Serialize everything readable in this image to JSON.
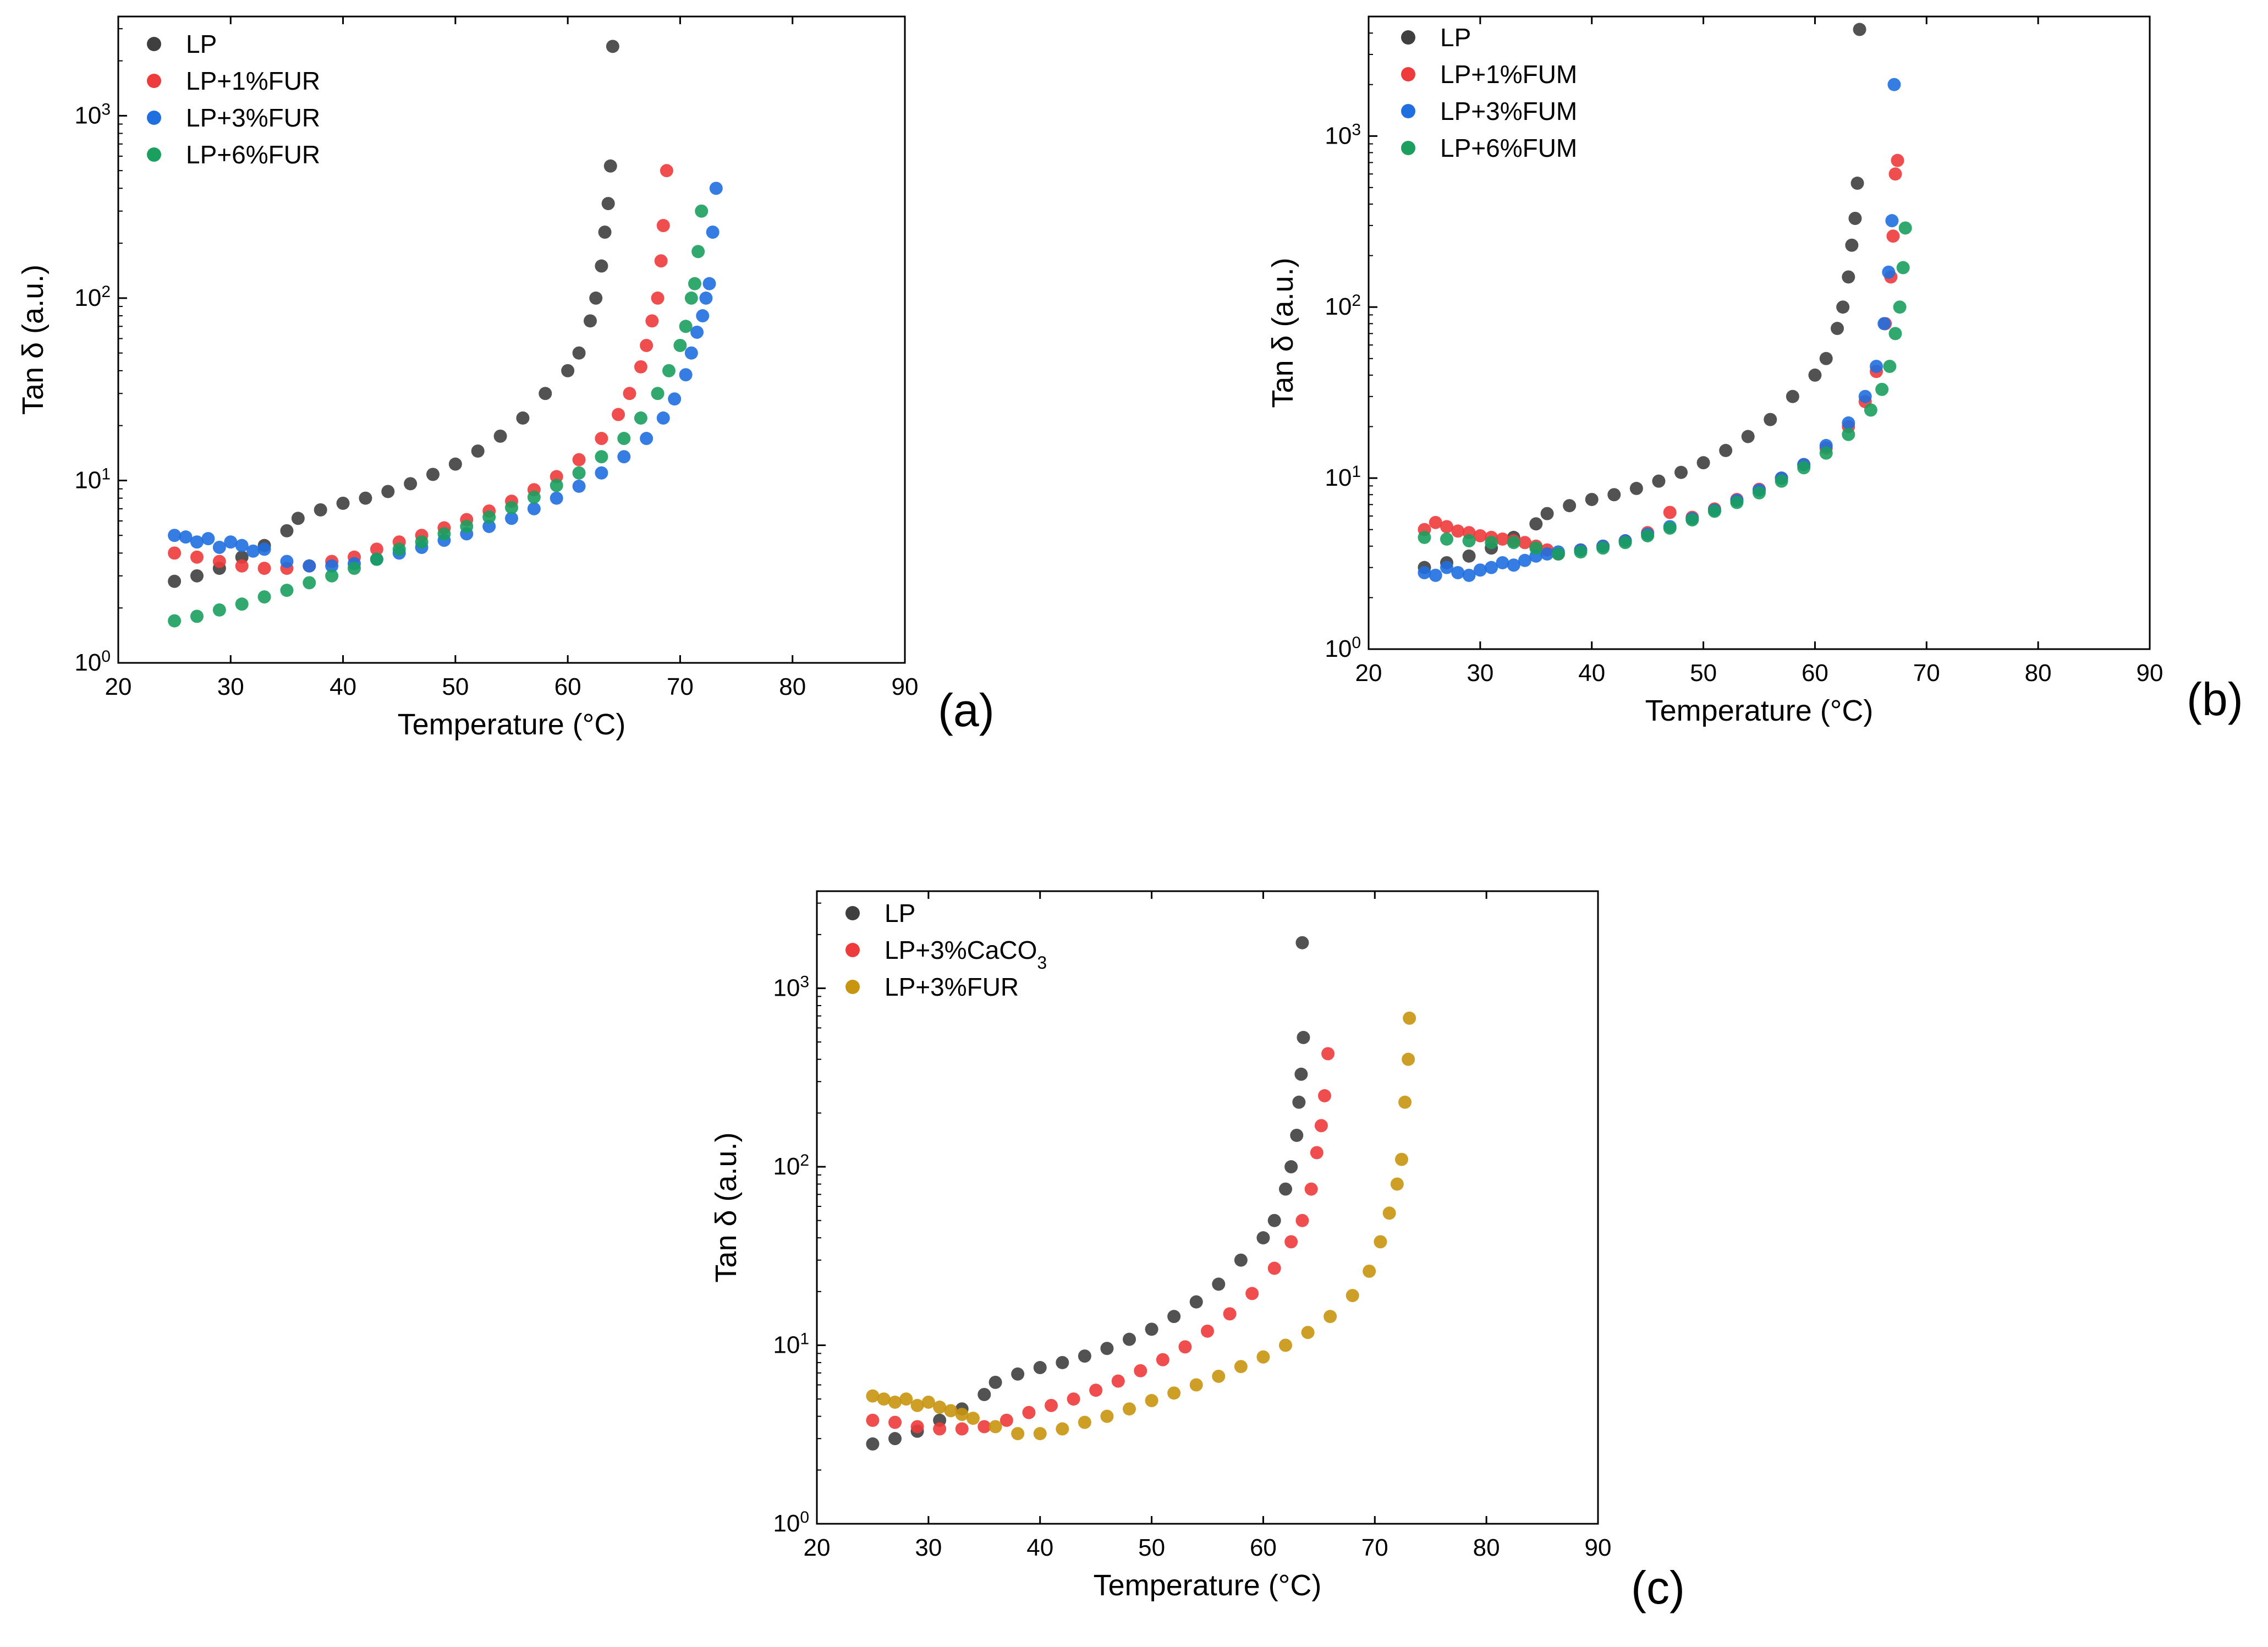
{
  "figure": {
    "panels": [
      "(a)",
      "(b)",
      "(c)"
    ]
  },
  "chart_data": [
    {
      "panel": "(a)",
      "type": "scatter",
      "xlabel": "Temperature (°C)",
      "ylabel": "Tan δ (a.u.)",
      "xlim": [
        20,
        90
      ],
      "xticks": [
        20,
        30,
        40,
        50,
        60,
        70,
        80,
        90
      ],
      "ylim": [
        1,
        3500
      ],
      "yscale": "log",
      "yticks": [
        {
          "base": "10",
          "exp": "0",
          "value": 1
        },
        {
          "base": "10",
          "exp": "1",
          "value": 10
        },
        {
          "base": "10",
          "exp": "2",
          "value": 100
        },
        {
          "base": "10",
          "exp": "3",
          "value": 1000
        }
      ],
      "grid": false,
      "legend_position": "top-left",
      "series": [
        {
          "name": "LP",
          "color": "#3f3f3f",
          "x": [
            25,
            27,
            29,
            31,
            33,
            35,
            36,
            38,
            40,
            42,
            44,
            46,
            48,
            50,
            52,
            54,
            56,
            58,
            60,
            61,
            62,
            62.5,
            63,
            63.3,
            63.6,
            63.8,
            64
          ],
          "y": [
            2.8,
            3.0,
            3.3,
            3.8,
            4.4,
            5.3,
            6.2,
            6.9,
            7.5,
            8.0,
            8.7,
            9.6,
            10.8,
            12.3,
            14.5,
            17.5,
            22,
            30,
            40,
            50,
            75,
            100,
            150,
            230,
            330,
            530,
            2400
          ]
        },
        {
          "name": "LP+1%FUR",
          "color": "#ee3b3b",
          "x": [
            25,
            27,
            29,
            31,
            33,
            35,
            37,
            39,
            41,
            43,
            45,
            47,
            49,
            51,
            53,
            55,
            57,
            59,
            61,
            63,
            64.5,
            65.5,
            66.5,
            67,
            67.5,
            68,
            68.3,
            68.5,
            68.8
          ],
          "y": [
            4.0,
            3.8,
            3.6,
            3.4,
            3.3,
            3.3,
            3.4,
            3.6,
            3.8,
            4.2,
            4.6,
            5.0,
            5.5,
            6.1,
            6.8,
            7.7,
            8.9,
            10.5,
            13,
            17,
            23,
            30,
            42,
            55,
            75,
            100,
            160,
            250,
            500
          ]
        },
        {
          "name": "LP+3%FUR",
          "color": "#1f6fe0",
          "x": [
            25,
            26,
            27,
            28,
            29,
            30,
            31,
            32,
            33,
            35,
            37,
            39,
            41,
            43,
            45,
            47,
            49,
            51,
            53,
            55,
            57,
            59,
            61,
            63,
            65,
            67,
            68.5,
            69.5,
            70.5,
            71,
            71.5,
            72,
            72.3,
            72.6,
            72.9,
            73.2
          ],
          "y": [
            5.0,
            4.9,
            4.6,
            4.8,
            4.3,
            4.6,
            4.4,
            4.1,
            4.2,
            3.6,
            3.4,
            3.4,
            3.5,
            3.7,
            4.0,
            4.3,
            4.7,
            5.1,
            5.6,
            6.2,
            7.0,
            8.0,
            9.3,
            11,
            13.5,
            17,
            22,
            28,
            38,
            50,
            65,
            80,
            100,
            120,
            230,
            400
          ]
        },
        {
          "name": "LP+6%FUR",
          "color": "#1a9f5e",
          "x": [
            25,
            27,
            29,
            31,
            33,
            35,
            37,
            39,
            41,
            43,
            45,
            47,
            49,
            51,
            53,
            55,
            57,
            59,
            61,
            63,
            65,
            66.5,
            68,
            69,
            70,
            70.5,
            71,
            71.3,
            71.6,
            71.9
          ],
          "y": [
            1.7,
            1.8,
            1.95,
            2.1,
            2.3,
            2.5,
            2.75,
            3.0,
            3.3,
            3.7,
            4.2,
            4.6,
            5.1,
            5.6,
            6.3,
            7.1,
            8.1,
            9.4,
            11,
            13.5,
            17,
            22,
            30,
            40,
            55,
            70,
            100,
            120,
            180,
            300
          ]
        }
      ]
    },
    {
      "panel": "(b)",
      "type": "scatter",
      "xlabel": "Temperature (°C)",
      "ylabel": "Tan δ (a.u.)",
      "xlim": [
        20,
        90
      ],
      "xticks": [
        20,
        30,
        40,
        50,
        60,
        70,
        80,
        90
      ],
      "ylim": [
        1,
        5000
      ],
      "yscale": "log",
      "yticks": [
        {
          "base": "10",
          "exp": "0",
          "value": 1
        },
        {
          "base": "10",
          "exp": "1",
          "value": 10
        },
        {
          "base": "10",
          "exp": "2",
          "value": 100
        },
        {
          "base": "10",
          "exp": "3",
          "value": 1000
        }
      ],
      "grid": false,
      "legend_position": "top-left",
      "series": [
        {
          "name": "LP",
          "color": "#3f3f3f",
          "x": [
            25,
            27,
            29,
            31,
            33,
            35,
            36,
            38,
            40,
            42,
            44,
            46,
            48,
            50,
            52,
            54,
            56,
            58,
            60,
            61,
            62,
            62.5,
            63,
            63.3,
            63.6,
            63.8,
            64
          ],
          "y": [
            3.0,
            3.2,
            3.5,
            3.9,
            4.5,
            5.4,
            6.2,
            6.9,
            7.5,
            8.0,
            8.7,
            9.6,
            10.8,
            12.3,
            14.5,
            17.5,
            22,
            30,
            40,
            50,
            75,
            100,
            150,
            230,
            330,
            530,
            4200
          ]
        },
        {
          "name": "LP+1%FUM",
          "color": "#ee3b3b",
          "x": [
            25,
            26,
            27,
            28,
            29,
            30,
            31,
            32,
            33,
            34,
            35,
            36,
            37,
            39,
            41,
            43,
            45,
            47,
            49,
            51,
            53,
            55,
            57,
            59,
            61,
            63,
            64.5,
            65.5,
            66.3,
            66.8,
            67,
            67.2,
            67.4
          ],
          "y": [
            5.0,
            5.5,
            5.2,
            4.9,
            4.8,
            4.6,
            4.5,
            4.4,
            4.3,
            4.2,
            4.0,
            3.8,
            3.6,
            3.8,
            4.0,
            4.3,
            4.8,
            6.3,
            5.9,
            6.6,
            7.5,
            8.6,
            10,
            12,
            15,
            20,
            28,
            42,
            80,
            150,
            260,
            600,
            720
          ]
        },
        {
          "name": "LP+3%FUM",
          "color": "#1f6fe0",
          "x": [
            25,
            26,
            27,
            28,
            29,
            30,
            31,
            32,
            33,
            34,
            35,
            36,
            37,
            39,
            41,
            43,
            45,
            47,
            49,
            51,
            53,
            55,
            57,
            59,
            61,
            63,
            64.5,
            65.5,
            66.2,
            66.6,
            66.9,
            67.1
          ],
          "y": [
            2.8,
            2.7,
            3.0,
            2.8,
            2.7,
            2.9,
            3.0,
            3.2,
            3.1,
            3.3,
            3.5,
            3.6,
            3.7,
            3.8,
            4.0,
            4.3,
            4.7,
            5.2,
            5.8,
            6.5,
            7.4,
            8.5,
            10,
            12,
            15.5,
            21,
            30,
            45,
            80,
            160,
            320,
            2000
          ]
        },
        {
          "name": "LP+6%FUM",
          "color": "#1a9f5e",
          "x": [
            25,
            27,
            29,
            31,
            33,
            35,
            37,
            39,
            41,
            43,
            45,
            47,
            49,
            51,
            53,
            55,
            57,
            59,
            61,
            63,
            65,
            66,
            66.7,
            67.2,
            67.6,
            67.9,
            68.1
          ],
          "y": [
            4.5,
            4.4,
            4.3,
            4.2,
            4.2,
            3.9,
            3.6,
            3.7,
            3.9,
            4.2,
            4.6,
            5.1,
            5.7,
            6.4,
            7.2,
            8.2,
            9.6,
            11.5,
            14,
            18,
            25,
            33,
            45,
            70,
            100,
            170,
            290
          ]
        }
      ]
    },
    {
      "panel": "(c)",
      "type": "scatter",
      "xlabel": "Temperature (°C)",
      "ylabel": "Tan δ (a.u.)",
      "xlim": [
        20,
        90
      ],
      "xticks": [
        20,
        30,
        40,
        50,
        60,
        70,
        80,
        90
      ],
      "ylim": [
        1,
        3500
      ],
      "yscale": "log",
      "yticks": [
        {
          "base": "10",
          "exp": "0",
          "value": 1
        },
        {
          "base": "10",
          "exp": "1",
          "value": 10
        },
        {
          "base": "10",
          "exp": "2",
          "value": 100
        },
        {
          "base": "10",
          "exp": "3",
          "value": 1000
        }
      ],
      "grid": false,
      "legend_position": "top-left",
      "series": [
        {
          "name": "LP",
          "color": "#3f3f3f",
          "x": [
            25,
            27,
            29,
            31,
            33,
            35,
            36,
            38,
            40,
            42,
            44,
            46,
            48,
            50,
            52,
            54,
            56,
            58,
            60,
            61,
            62,
            62.5,
            63,
            63.2,
            63.4,
            63.6,
            63.5
          ],
          "y": [
            2.8,
            3.0,
            3.3,
            3.8,
            4.4,
            5.3,
            6.2,
            6.9,
            7.5,
            8.0,
            8.7,
            9.6,
            10.8,
            12.3,
            14.5,
            17.5,
            22,
            30,
            40,
            50,
            75,
            100,
            150,
            230,
            330,
            530,
            1800
          ]
        },
        {
          "name": "LP+3%CaCO3",
          "color": "#ee3b3b",
          "x": [
            25,
            27,
            29,
            31,
            33,
            35,
            37,
            39,
            41,
            43,
            45,
            47,
            49,
            51,
            53,
            55,
            57,
            59,
            61,
            62.5,
            63.5,
            64.3,
            64.8,
            65.2,
            65.5,
            65.8
          ],
          "y": [
            3.8,
            3.7,
            3.5,
            3.4,
            3.4,
            3.5,
            3.8,
            4.2,
            4.6,
            5.0,
            5.6,
            6.3,
            7.2,
            8.3,
            9.8,
            12,
            15,
            19.5,
            27,
            38,
            50,
            75,
            120,
            170,
            250,
            430
          ]
        },
        {
          "name": "LP+3%FUR",
          "color": "#c89510",
          "x": [
            25,
            26,
            27,
            28,
            29,
            30,
            31,
            32,
            33,
            34,
            36,
            38,
            40,
            42,
            44,
            46,
            48,
            50,
            52,
            54,
            56,
            58,
            60,
            62,
            64,
            66,
            68,
            69.5,
            70.5,
            71.3,
            72,
            72.4,
            72.7,
            73,
            73.1
          ],
          "y": [
            5.2,
            5.0,
            4.8,
            5.0,
            4.6,
            4.8,
            4.5,
            4.3,
            4.1,
            3.9,
            3.5,
            3.2,
            3.2,
            3.4,
            3.7,
            4.0,
            4.4,
            4.9,
            5.4,
            6.0,
            6.7,
            7.6,
            8.6,
            10,
            11.8,
            14.5,
            19,
            26,
            38,
            55,
            80,
            110,
            230,
            400,
            680
          ]
        }
      ]
    }
  ]
}
